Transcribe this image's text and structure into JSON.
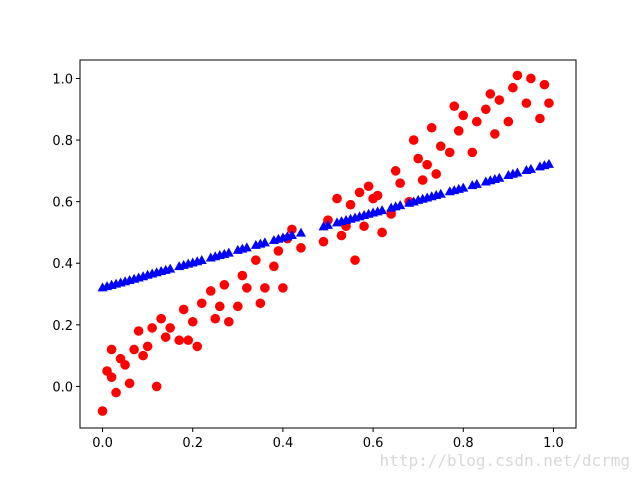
{
  "chart_data": {
    "type": "scatter",
    "x": [
      0.0,
      0.01,
      0.02,
      0.02,
      0.03,
      0.04,
      0.05,
      0.06,
      0.07,
      0.08,
      0.09,
      0.1,
      0.11,
      0.12,
      0.13,
      0.14,
      0.15,
      0.17,
      0.18,
      0.19,
      0.2,
      0.21,
      0.22,
      0.24,
      0.25,
      0.26,
      0.27,
      0.28,
      0.3,
      0.31,
      0.32,
      0.34,
      0.35,
      0.36,
      0.38,
      0.39,
      0.4,
      0.41,
      0.42,
      0.44,
      0.49,
      0.5,
      0.52,
      0.53,
      0.54,
      0.55,
      0.56,
      0.57,
      0.58,
      0.59,
      0.6,
      0.61,
      0.62,
      0.64,
      0.65,
      0.66,
      0.68,
      0.69,
      0.7,
      0.71,
      0.72,
      0.73,
      0.74,
      0.75,
      0.77,
      0.78,
      0.79,
      0.8,
      0.82,
      0.83,
      0.85,
      0.86,
      0.87,
      0.88,
      0.9,
      0.91,
      0.92,
      0.94,
      0.95,
      0.97,
      0.98,
      0.99
    ],
    "series": [
      {
        "color": "#ff0000",
        "marker": "circle",
        "values": [
          -0.08,
          0.05,
          0.12,
          0.03,
          -0.02,
          0.09,
          0.07,
          0.01,
          0.12,
          0.18,
          0.1,
          0.13,
          0.19,
          0.0,
          0.22,
          0.16,
          0.19,
          0.15,
          0.25,
          0.15,
          0.21,
          0.13,
          0.27,
          0.31,
          0.22,
          0.26,
          0.33,
          0.21,
          0.26,
          0.36,
          0.32,
          0.41,
          0.27,
          0.32,
          0.39,
          0.44,
          0.32,
          0.48,
          0.51,
          0.45,
          0.47,
          0.54,
          0.61,
          0.49,
          0.52,
          0.59,
          0.41,
          0.63,
          0.52,
          0.65,
          0.61,
          0.62,
          0.5,
          0.56,
          0.7,
          0.66,
          0.6,
          0.8,
          0.74,
          0.67,
          0.72,
          0.84,
          0.69,
          0.78,
          0.76,
          0.91,
          0.83,
          0.88,
          0.76,
          0.86,
          0.9,
          0.95,
          0.82,
          0.93,
          0.86,
          0.97,
          1.01,
          0.92,
          1.0,
          0.87,
          0.98,
          0.92
        ]
      },
      {
        "color": "#0000ff",
        "marker": "triangle",
        "values": [
          0.32,
          0.324,
          0.328,
          0.328,
          0.332,
          0.336,
          0.34,
          0.344,
          0.348,
          0.352,
          0.356,
          0.361,
          0.365,
          0.369,
          0.373,
          0.377,
          0.381,
          0.389,
          0.393,
          0.397,
          0.401,
          0.405,
          0.409,
          0.417,
          0.421,
          0.425,
          0.429,
          0.433,
          0.442,
          0.446,
          0.45,
          0.458,
          0.462,
          0.466,
          0.474,
          0.478,
          0.482,
          0.486,
          0.49,
          0.498,
          0.518,
          0.523,
          0.531,
          0.535,
          0.539,
          0.543,
          0.547,
          0.551,
          0.555,
          0.559,
          0.563,
          0.567,
          0.571,
          0.579,
          0.583,
          0.587,
          0.595,
          0.599,
          0.604,
          0.608,
          0.612,
          0.616,
          0.62,
          0.624,
          0.632,
          0.636,
          0.64,
          0.644,
          0.652,
          0.656,
          0.664,
          0.668,
          0.672,
          0.676,
          0.685,
          0.689,
          0.693,
          0.701,
          0.705,
          0.713,
          0.717,
          0.721
        ]
      }
    ],
    "xlim": [
      -0.05,
      1.05
    ],
    "xticks": [
      {
        "value": 0,
        "label": "0.0"
      },
      0.2,
      0.4,
      0.6,
      0.8,
      {
        "value": 1,
        "label": "1.0"
      }
    ],
    "ylim": [
      -0.135,
      1.06
    ],
    "yticks": [
      {
        "value": 0,
        "label": "0.0"
      },
      0.2,
      0.4,
      0.6,
      0.8,
      {
        "value": 1,
        "label": "1.0"
      }
    ],
    "grid": false,
    "watermark": "http://blog.csdn.net/dcrmg"
  }
}
